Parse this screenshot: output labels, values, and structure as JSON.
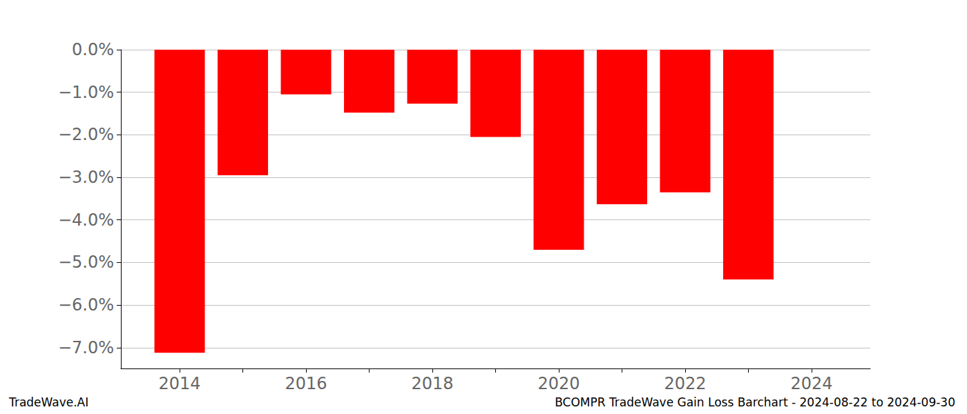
{
  "chart_data": {
    "type": "bar",
    "title": "BCOMPR TradeWave Gain Loss Barchart - 2024-08-22 to 2024-09-30",
    "annotations": [
      "TradeWave.AI"
    ],
    "x": [
      2014,
      2015,
      2016,
      2017,
      2018,
      2019,
      2020,
      2021,
      2022,
      2023
    ],
    "values": [
      -7.12,
      -2.95,
      -1.05,
      -1.48,
      -1.27,
      -2.05,
      -4.7,
      -3.63,
      -3.35,
      -5.4
    ],
    "color": "#ff0000",
    "xlim": [
      2013.07,
      2024.93
    ],
    "xticks": [
      2014,
      2016,
      2018,
      2020,
      2022,
      2024
    ],
    "ylim": [
      -7.49,
      0
    ],
    "yticks": [
      {
        "value": 0,
        "label": "0.0%"
      },
      {
        "value": -1,
        "label": "−1.0%"
      },
      {
        "value": -2,
        "label": "−2.0%"
      },
      {
        "value": -3,
        "label": "−3.0%"
      },
      {
        "value": -4,
        "label": "−4.0%"
      },
      {
        "value": -5,
        "label": "−5.0%"
      },
      {
        "value": -6,
        "label": "−6.0%"
      },
      {
        "value": -7,
        "label": "−7.0%"
      }
    ],
    "grid": true
  }
}
